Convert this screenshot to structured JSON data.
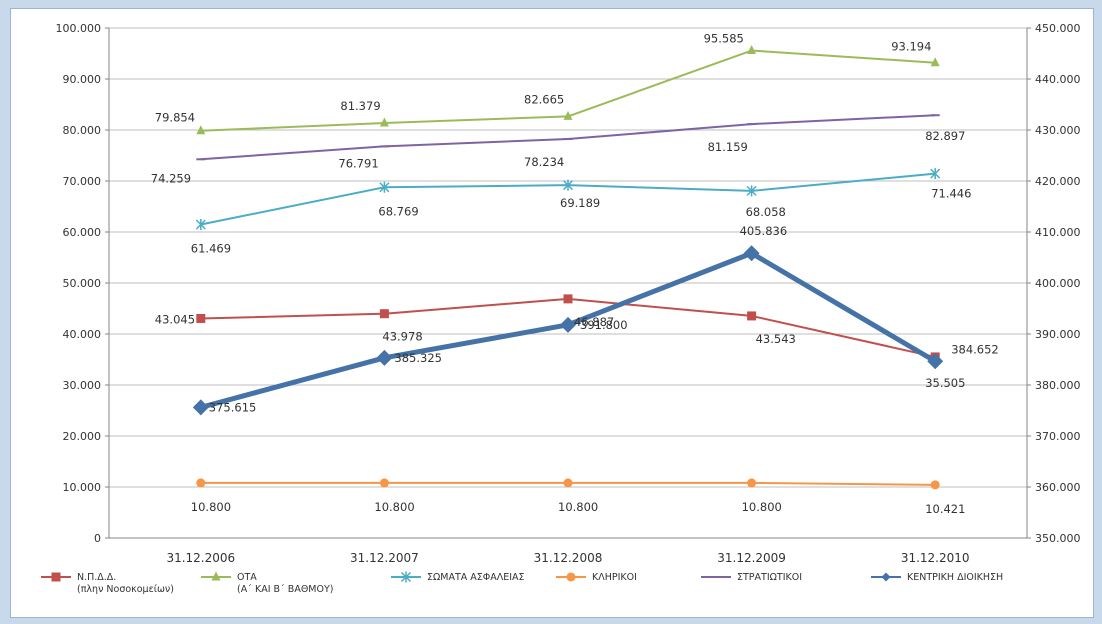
{
  "chart_data": {
    "type": "line",
    "title": "",
    "categories": [
      "31.12.2006",
      "31.12.2007",
      "31.12.2008",
      "31.12.2009",
      "31.12.2010"
    ],
    "y_left": {
      "min": 0,
      "max": 100000,
      "step": 10000,
      "tick_labels": [
        "0",
        "10.000",
        "20.000",
        "30.000",
        "40.000",
        "50.000",
        "60.000",
        "70.000",
        "80.000",
        "90.000",
        "100.000"
      ]
    },
    "y_right": {
      "min": 350000,
      "max": 450000,
      "step": 10000,
      "tick_labels": [
        "350.000",
        "360.000",
        "370.000",
        "380.000",
        "390.000",
        "400.000",
        "410.000",
        "420.000",
        "430.000",
        "440.000",
        "450.000"
      ]
    },
    "grid": "horizontal",
    "legend_position": "bottom",
    "series": [
      {
        "name": "Ν.Π.Δ.Δ.",
        "name_line2": "(πλην Νοσοκομείων)",
        "axis": "left",
        "color": "#c0504d",
        "marker": "square",
        "width": 2,
        "values": [
          43045,
          43978,
          46887,
          43543,
          35505
        ],
        "labels": [
          "43.045",
          "43.978",
          "46.887",
          "43.543",
          "35.505"
        ]
      },
      {
        "name": "ΟΤΑ",
        "name_line2": "(Α΄ ΚΑΙ Β΄ ΒΑΘΜΟΥ)",
        "axis": "left",
        "color": "#9bbb59",
        "marker": "triangle",
        "width": 2,
        "values": [
          79854,
          81379,
          82665,
          95585,
          93194
        ],
        "labels": [
          "79.854",
          "81.379",
          "82.665",
          "95.585",
          "93.194"
        ]
      },
      {
        "name": "ΣΩΜΑΤΑ ΑΣΦΑΛΕΙΑΣ",
        "name_line2": "",
        "axis": "left",
        "color": "#4bacc6",
        "marker": "star",
        "width": 2,
        "values": [
          61469,
          68769,
          69189,
          68058,
          71446
        ],
        "labels": [
          "61.469",
          "68.769",
          "69.189",
          "68.058",
          "71.446"
        ]
      },
      {
        "name": "ΚΛΗΡΙΚΟΙ",
        "name_line2": "",
        "axis": "left",
        "color": "#f79646",
        "marker": "circle",
        "width": 2,
        "values": [
          10800,
          10800,
          10800,
          10800,
          10421
        ],
        "labels": [
          "10.800",
          "10.800",
          "10.800",
          "10.800",
          "10.421"
        ]
      },
      {
        "name": "ΣΤΡΑΤΙΩΤΙΚΟΙ",
        "name_line2": "",
        "axis": "left",
        "color": "#8064a2",
        "marker": "dash",
        "width": 2,
        "values": [
          74259,
          76791,
          78234,
          81159,
          82897
        ],
        "labels": [
          "74.259",
          "76.791",
          "78.234",
          "81.159",
          "82.897"
        ]
      },
      {
        "name": "ΚΕΝΤΡΙΚΗ ΔΙΟΙΚΗΣΗ",
        "name_line2": "",
        "axis": "right",
        "color": "#4572a7",
        "marker": "diamond",
        "width": 5,
        "values": [
          375615,
          385325,
          391800,
          405836,
          384652
        ],
        "labels": [
          "375.615",
          "385.325",
          "391.800",
          "405.836",
          "384.652"
        ]
      }
    ]
  }
}
